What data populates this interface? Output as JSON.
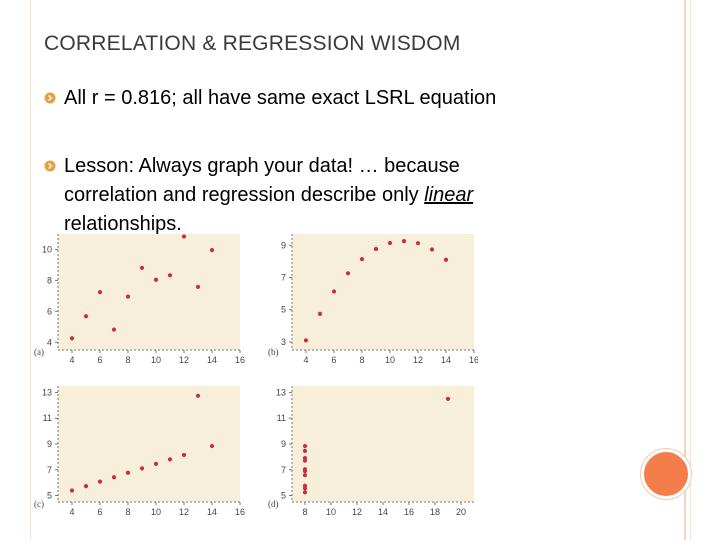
{
  "slide": {
    "title": "CORRELATION & REGRESSION WISDOM",
    "bullets": [
      {
        "text": "All r = 0.816; all have same exact LSRL equation"
      },
      {
        "line1": "Lesson:  Always graph your data! … because",
        "line2_prefix": "correlation and regression describe only ",
        "line2_emph": "linear",
        "line3": "relationships."
      }
    ]
  },
  "colors": {
    "panel_bg": "#f7efd9",
    "point": "#c7313f",
    "accent": "#f47e4a"
  },
  "chart_data": [
    {
      "type": "scatter",
      "panel_label": "(a)",
      "x": [
        4,
        5,
        6,
        7,
        8,
        9,
        10,
        11,
        12,
        13,
        14
      ],
      "y": [
        4.26,
        5.68,
        7.24,
        4.82,
        6.95,
        8.81,
        8.04,
        8.33,
        10.84,
        7.58,
        9.96
      ],
      "xlim": [
        3,
        16
      ],
      "ylim": [
        3.5,
        11
      ],
      "xticks": [
        4,
        6,
        8,
        10,
        12,
        14,
        16
      ],
      "yticks": [
        4,
        6,
        8,
        10
      ]
    },
    {
      "type": "scatter",
      "panel_label": "(b)",
      "x": [
        4,
        5,
        6,
        7,
        8,
        9,
        10,
        11,
        12,
        13,
        14
      ],
      "y": [
        3.1,
        4.74,
        6.13,
        7.26,
        8.14,
        8.77,
        9.14,
        9.26,
        9.13,
        8.74,
        8.1
      ],
      "xlim": [
        3,
        16
      ],
      "ylim": [
        2.5,
        9.7
      ],
      "xticks": [
        4,
        6,
        8,
        10,
        12,
        14,
        16
      ],
      "yticks": [
        3,
        5,
        7,
        9
      ]
    },
    {
      "type": "scatter",
      "panel_label": "(c)",
      "x": [
        4,
        5,
        6,
        7,
        8,
        9,
        10,
        11,
        12,
        13,
        14
      ],
      "y": [
        5.39,
        5.73,
        6.08,
        6.42,
        6.77,
        7.11,
        7.46,
        7.81,
        8.15,
        12.74,
        8.84
      ],
      "xlim": [
        3,
        16
      ],
      "ylim": [
        4.5,
        13.5
      ],
      "xticks": [
        4,
        6,
        8,
        10,
        12,
        14,
        16
      ],
      "yticks": [
        5,
        7,
        9,
        11,
        13
      ]
    },
    {
      "type": "scatter",
      "panel_label": "(d)",
      "x": [
        8,
        8,
        8,
        8,
        8,
        8,
        8,
        8,
        8,
        8,
        19
      ],
      "y": [
        6.58,
        5.76,
        7.71,
        8.84,
        8.47,
        7.04,
        5.25,
        5.56,
        7.91,
        6.89,
        12.5
      ],
      "xlim": [
        7,
        21
      ],
      "ylim": [
        4.5,
        13.5
      ],
      "xticks": [
        8,
        10,
        12,
        14,
        16,
        18,
        20
      ],
      "yticks": [
        5,
        7,
        9,
        11,
        13
      ]
    }
  ]
}
